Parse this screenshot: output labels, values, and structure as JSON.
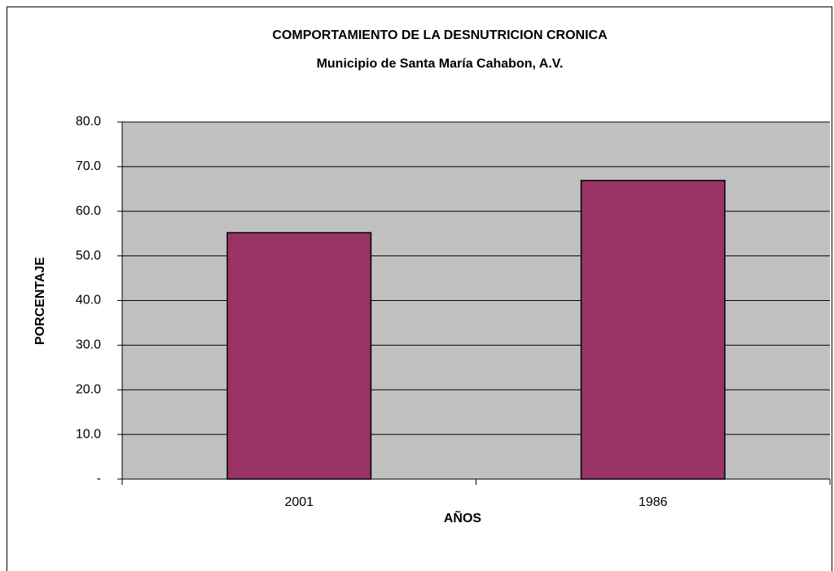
{
  "chart_data": {
    "type": "bar",
    "title": "COMPORTAMIENTO DE LA DESNUTRICION CRONICA",
    "subtitle": "Municipio de Santa María Cahabon, A.V.",
    "x_label": "AÑOS",
    "y_label": "PORCENTAJE",
    "categories": [
      "2001",
      "1986"
    ],
    "values": [
      55.2,
      66.9
    ],
    "color": "#993366",
    "ylim": [
      0,
      80
    ],
    "yticks": [
      {
        "value": 0,
        "label": "-"
      },
      {
        "value": 10,
        "label": "10.0"
      },
      {
        "value": 20,
        "label": "20.0"
      },
      {
        "value": 30,
        "label": "30.0"
      },
      {
        "value": 40,
        "label": "40.0"
      },
      {
        "value": 50,
        "label": "50.0"
      },
      {
        "value": 60,
        "label": "60.0"
      },
      {
        "value": 70,
        "label": "70.0"
      },
      {
        "value": 80,
        "label": "80.0"
      }
    ],
    "grid": true
  }
}
